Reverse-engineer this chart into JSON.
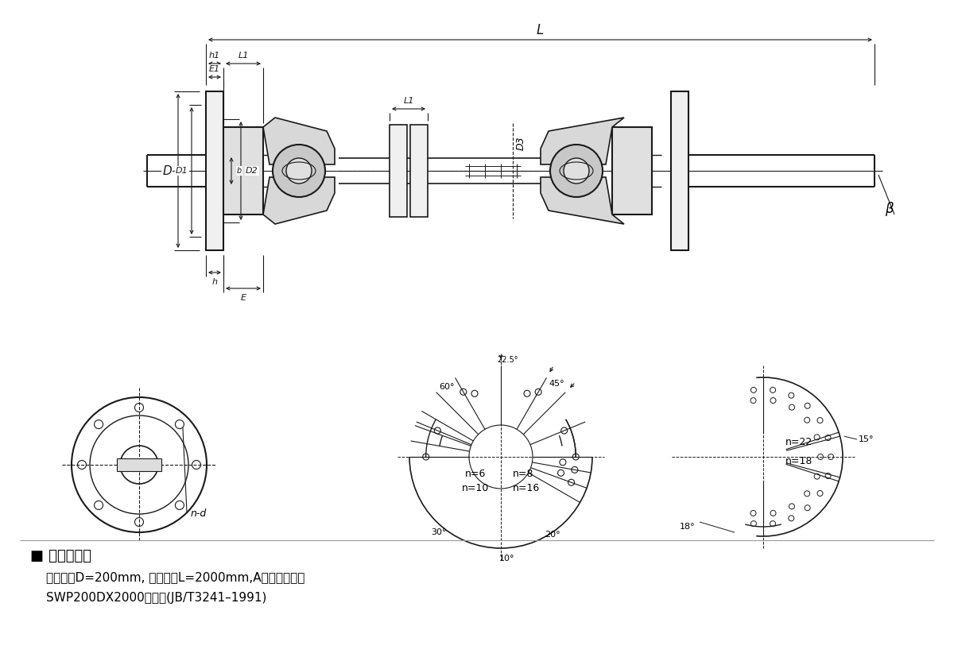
{
  "bg_color": "#ffffff",
  "lc": "#1a1a1a",
  "label_section": "■ 标记示例：",
  "desc_line1": "回转直径D=200mm, 安装长度L=2000mm,A型万向联轴器",
  "desc_line2": "SWP200DX2000联轴器(JB/T3241–1991)"
}
